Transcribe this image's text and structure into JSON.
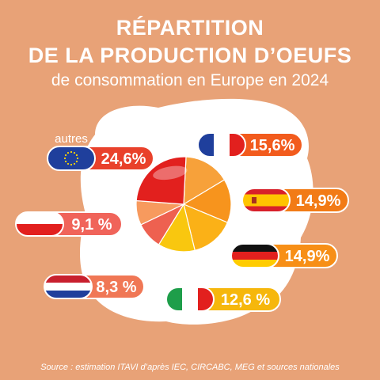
{
  "header": {
    "title_line1": "RÉPARTITION",
    "title_line2": "DE LA PRODUCTION D’OEUFS",
    "subtitle": "de consommation en Europe en 2024"
  },
  "chart_data": {
    "type": "pie",
    "categories": [
      "autres",
      "France",
      "Espagne",
      "Allemagne",
      "Italie",
      "Pays-Bas",
      "Pologne"
    ],
    "values": [
      24.6,
      15.6,
      14.9,
      14.9,
      12.6,
      8.3,
      9.1
    ],
    "value_labels": [
      "24,6%",
      "15,6%",
      "14,9%",
      "14,9%",
      "12,6 %",
      "8,3 %",
      "9,1 %"
    ],
    "category_caption": "autres",
    "flags": [
      "eu-flag-icon",
      "france-flag-icon",
      "spain-flag-icon",
      "germany-flag-icon",
      "italy-flag-icon",
      "netherlands-flag-icon",
      "poland-flag-icon"
    ],
    "slice_colors": [
      "#E2201E",
      "#F26B22",
      "#F7941D",
      "#FBB117",
      "#F9C70F",
      "#F7921E",
      "#F0645A"
    ],
    "label_colors": [
      "#E9412B",
      "#F25B1D",
      "#F27B16",
      "#F78F17",
      "#F6B70C",
      "#F07755",
      "#F0645A"
    ]
  },
  "footer": {
    "source": "Source : estimation ITAVI d’après IEC, CIRCABC, MEG et sources nationales"
  }
}
